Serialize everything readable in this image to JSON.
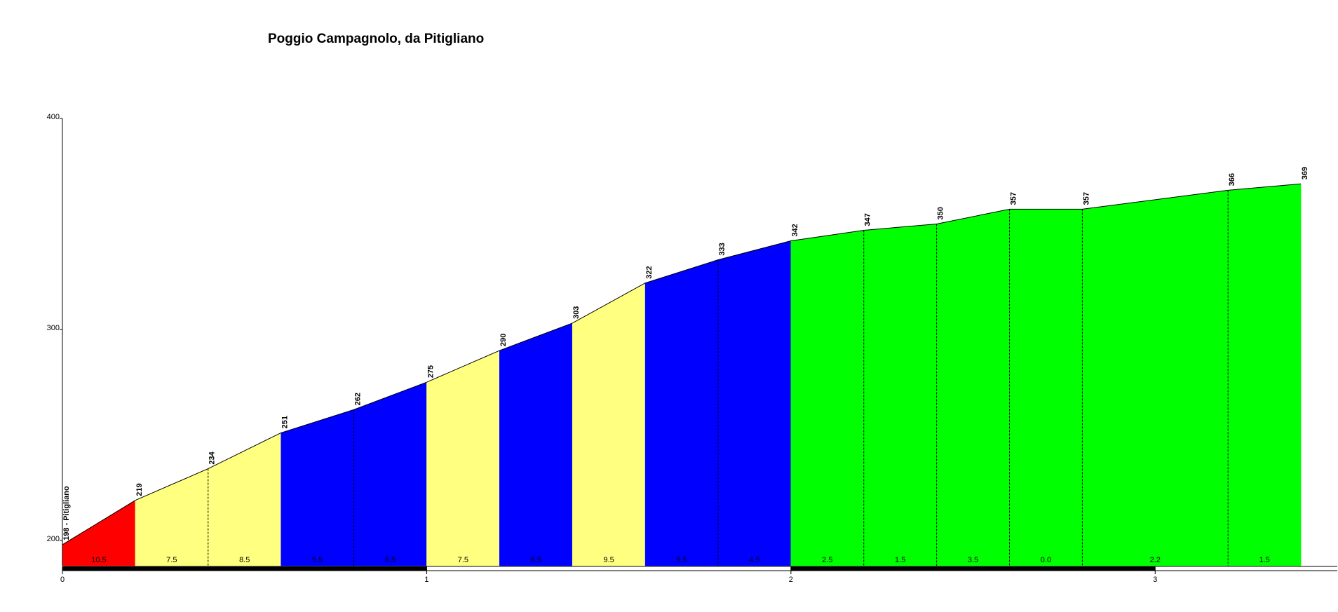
{
  "chart_data": {
    "type": "area",
    "title": "Poggio Campagnolo, da Pitigliano",
    "x": [
      0,
      0.2,
      0.4,
      0.6,
      0.8,
      1.0,
      1.2,
      1.4,
      1.6,
      1.8,
      2.0,
      2.2,
      2.4,
      2.6,
      2.8,
      3.2,
      3.4
    ],
    "values": [
      198,
      219,
      234,
      251,
      262,
      275,
      290,
      303,
      322,
      333,
      342,
      347,
      350,
      357,
      357,
      366,
      369
    ],
    "value_labels": [
      "198 - Pitigliano",
      "219",
      "234",
      "251",
      "262",
      "275",
      "290",
      "303",
      "322",
      "333",
      "342",
      "347",
      "350",
      "357",
      "357",
      "366",
      "369"
    ],
    "segment_labels": [
      "10.5",
      "7.5",
      "8.5",
      "5.5",
      "6.5",
      "7.5",
      "6.5",
      "9.5",
      "5.5",
      "4.5",
      "2.5",
      "1.5",
      "3.5",
      "0.0",
      "2.2",
      "1.5"
    ],
    "segment_colors": [
      "#ff0000",
      "#ffff80",
      "#ffff80",
      "#0000ff",
      "#0000ff",
      "#ffff80",
      "#0000ff",
      "#ffff80",
      "#0000ff",
      "#0000ff",
      "#00ff00",
      "#00ff00",
      "#00ff00",
      "#00ff00",
      "#00ff00",
      "#00ff00"
    ],
    "xlim": [
      0,
      3.5
    ],
    "xticks": [
      0,
      1,
      2,
      3
    ],
    "ylim": [
      188,
      400
    ],
    "yticks": [
      200,
      300,
      400
    ]
  }
}
